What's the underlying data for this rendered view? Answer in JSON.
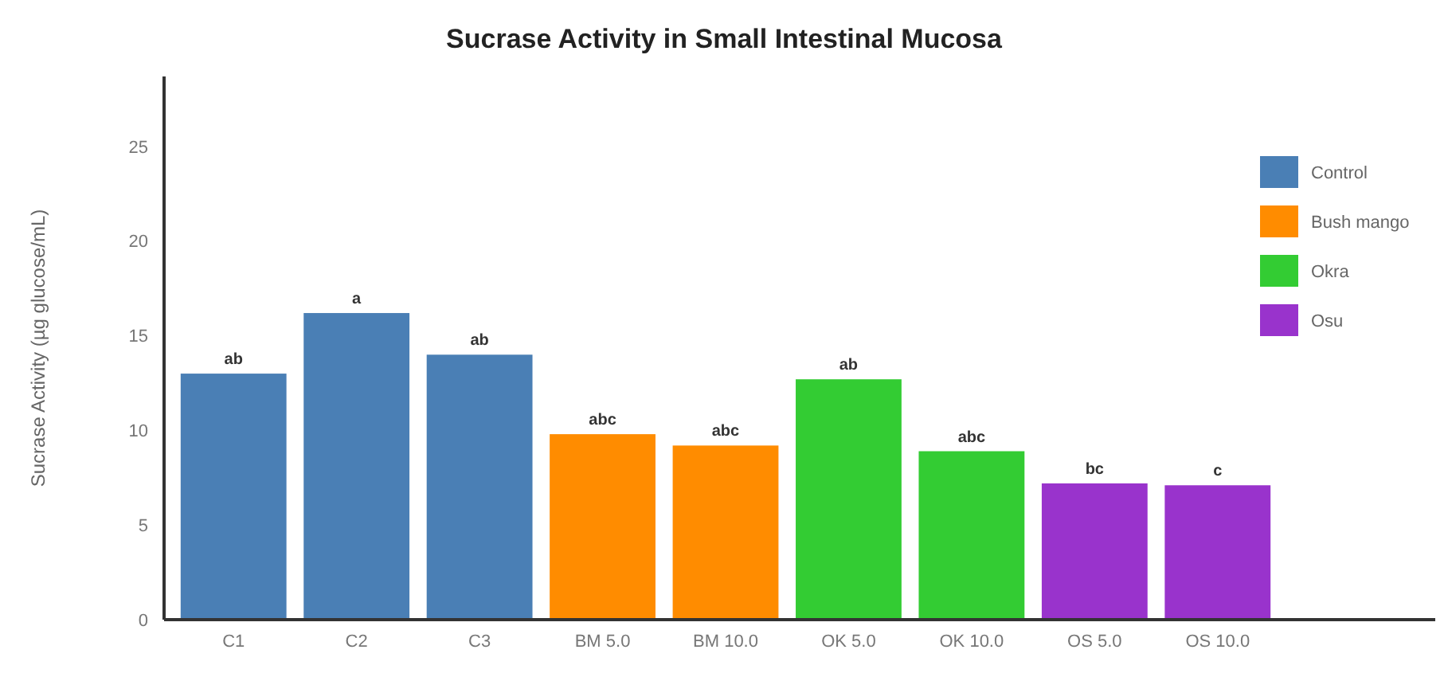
{
  "chart_data": {
    "type": "bar",
    "title": "Sucrase Activity in Small Intestinal Mucosa",
    "ylabel": "Sucrase Activity (µg glucose/mL)",
    "categories": [
      "C1",
      "C2",
      "C3",
      "BM 5.0",
      "BM 10.0",
      "OK 5.0",
      "OK 10.0",
      "OS 5.0",
      "OS 10.0"
    ],
    "series": [
      {
        "name": "Control",
        "color": "#4a7fb5",
        "values": [
          13.0,
          16.2,
          14.0,
          null,
          null,
          null,
          null,
          null,
          null
        ]
      },
      {
        "name": "Bush mango",
        "color": "#ff8c00",
        "values": [
          null,
          null,
          null,
          9.8,
          9.2,
          null,
          null,
          null,
          null
        ]
      },
      {
        "name": "Okra",
        "color": "#33cc33",
        "values": [
          null,
          null,
          null,
          null,
          null,
          12.7,
          8.9,
          null,
          null
        ]
      },
      {
        "name": "Osu",
        "color": "#9933cc",
        "values": [
          null,
          null,
          null,
          null,
          null,
          null,
          null,
          7.2,
          7.1
        ]
      }
    ],
    "stacked": true,
    "ylim": [
      0,
      28.7
    ],
    "yticks": [
      0,
      5,
      10,
      15,
      20,
      25
    ],
    "grid": false,
    "legend": "right",
    "annotations": [
      {
        "text": "ab",
        "x": "C1",
        "y": 13.0
      },
      {
        "text": "a",
        "x": "C2",
        "y": 16.2
      },
      {
        "text": "ab",
        "x": "C3",
        "y": 14.0
      },
      {
        "text": "abc",
        "x": "BM 5.0",
        "y": 9.8
      },
      {
        "text": "abc",
        "x": "BM 10.0",
        "y": 9.2
      },
      {
        "text": "ab",
        "x": "OK 5.0",
        "y": 12.7
      },
      {
        "text": "abc",
        "x": "OK 10.0",
        "y": 8.9
      },
      {
        "text": "bc",
        "x": "OS 5.0",
        "y": 7.2
      },
      {
        "text": "c",
        "x": "OS 10.0",
        "y": 7.1
      }
    ]
  }
}
